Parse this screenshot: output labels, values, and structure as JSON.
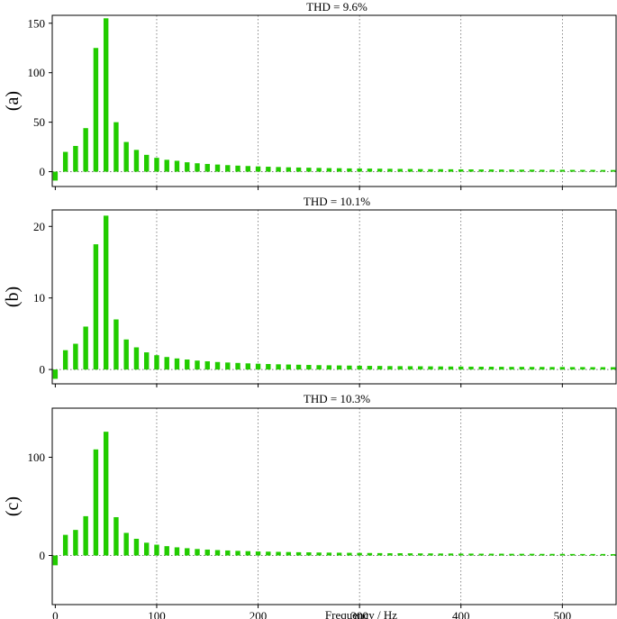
{
  "chart_data": [
    {
      "type": "bar",
      "label": "(a)",
      "title": "THD = 9.6%",
      "ylim": [
        -15,
        158
      ],
      "yticks": [
        0,
        50,
        100,
        150
      ],
      "xlim": [
        -3,
        553
      ],
      "xticks": [
        0,
        100,
        200,
        300,
        400,
        500
      ],
      "grid": true,
      "color": "#22cc00",
      "x": [
        0,
        10,
        20,
        30,
        40,
        50,
        60,
        70,
        80,
        90,
        100,
        110,
        120,
        130,
        140,
        150,
        160,
        170,
        180,
        190,
        200,
        210,
        220,
        230,
        240,
        250,
        260,
        270,
        280,
        290,
        300,
        310,
        320,
        330,
        340,
        350,
        360,
        370,
        380,
        390,
        400,
        410,
        420,
        430,
        440,
        450,
        460,
        470,
        480,
        490,
        500,
        510,
        520,
        530,
        540,
        550
      ],
      "values": [
        -9,
        20,
        26,
        44,
        125,
        155,
        50,
        30,
        22,
        17,
        14,
        12,
        11,
        9.5,
        8.5,
        7.8,
        7.2,
        6.6,
        6.1,
        5.7,
        5.3,
        5.0,
        4.7,
        4.4,
        4.2,
        4.0,
        3.8,
        3.6,
        3.5,
        3.3,
        3.2,
        3.1,
        3.0,
        2.9,
        2.8,
        2.7,
        2.6,
        2.5,
        2.5,
        2.4,
        2.3,
        2.3,
        2.2,
        2.2,
        2.1,
        2.1,
        2.0,
        2.0,
        1.9,
        1.9,
        1.9,
        1.8,
        1.8,
        1.8,
        1.7,
        1.7
      ]
    },
    {
      "type": "bar",
      "label": "(b)",
      "title": "THD = 10.1%",
      "ylim": [
        -2,
        22.3
      ],
      "yticks": [
        0,
        10,
        20
      ],
      "xlim": [
        -3,
        553
      ],
      "xticks": [
        0,
        100,
        200,
        300,
        400,
        500
      ],
      "grid": true,
      "color": "#22cc00",
      "x": [
        0,
        10,
        20,
        30,
        40,
        50,
        60,
        70,
        80,
        90,
        100,
        110,
        120,
        130,
        140,
        150,
        160,
        170,
        180,
        190,
        200,
        210,
        220,
        230,
        240,
        250,
        260,
        270,
        280,
        290,
        300,
        310,
        320,
        330,
        340,
        350,
        360,
        370,
        380,
        390,
        400,
        410,
        420,
        430,
        440,
        450,
        460,
        470,
        480,
        490,
        500,
        510,
        520,
        530,
        540,
        550
      ],
      "values": [
        -1.3,
        2.7,
        3.6,
        6.0,
        17.5,
        21.5,
        7.0,
        4.2,
        3.1,
        2.4,
        2.0,
        1.75,
        1.55,
        1.4,
        1.25,
        1.15,
        1.05,
        0.98,
        0.92,
        0.86,
        0.81,
        0.77,
        0.73,
        0.7,
        0.67,
        0.64,
        0.61,
        0.59,
        0.57,
        0.55,
        0.53,
        0.51,
        0.5,
        0.48,
        0.47,
        0.46,
        0.45,
        0.44,
        0.43,
        0.42,
        0.41,
        0.4,
        0.39,
        0.39,
        0.38,
        0.37,
        0.37,
        0.36,
        0.36,
        0.35,
        0.35,
        0.34,
        0.34,
        0.33,
        0.33,
        0.33
      ]
    },
    {
      "type": "bar",
      "label": "(c)",
      "title": "THD = 10.3%",
      "ylim": [
        -50,
        150
      ],
      "yticks": [
        0,
        100
      ],
      "xlim": [
        -3,
        553
      ],
      "xticks": [
        0,
        100,
        200,
        300,
        400,
        500
      ],
      "xtick_labels": [
        "0",
        "100",
        "200",
        "300",
        "400",
        "500"
      ],
      "xlabel": "Frequency / Hz",
      "grid": true,
      "color": "#22cc00",
      "x": [
        0,
        10,
        20,
        30,
        40,
        50,
        60,
        70,
        80,
        90,
        100,
        110,
        120,
        130,
        140,
        150,
        160,
        170,
        180,
        190,
        200,
        210,
        220,
        230,
        240,
        250,
        260,
        270,
        280,
        290,
        300,
        310,
        320,
        330,
        340,
        350,
        360,
        370,
        380,
        390,
        400,
        410,
        420,
        430,
        440,
        450,
        460,
        470,
        480,
        490,
        500,
        510,
        520,
        530,
        540,
        550
      ],
      "values": [
        -10,
        21,
        26,
        40,
        108,
        126,
        39,
        23,
        17,
        13,
        11,
        9.5,
        8.3,
        7.4,
        6.6,
        6.0,
        5.5,
        5.1,
        4.7,
        4.4,
        4.1,
        3.9,
        3.7,
        3.5,
        3.3,
        3.2,
        3.0,
        2.9,
        2.8,
        2.7,
        2.6,
        2.5,
        2.4,
        2.3,
        2.3,
        2.2,
        2.1,
        2.1,
        2.0,
        2.0,
        1.9,
        1.9,
        1.8,
        1.8,
        1.8,
        1.7,
        1.7,
        1.7,
        1.6,
        1.6,
        1.6,
        1.5,
        1.5,
        1.5,
        1.5,
        1.4
      ]
    }
  ]
}
